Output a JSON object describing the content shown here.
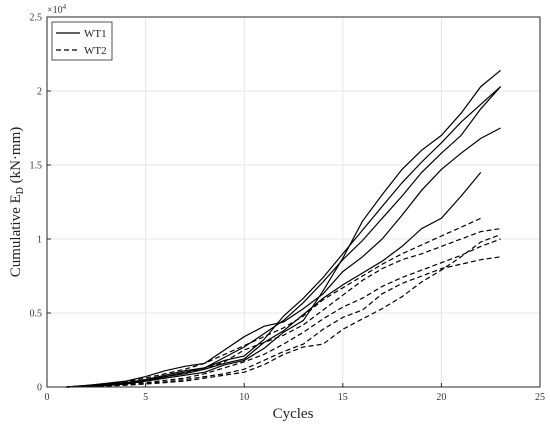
{
  "chart_data": {
    "type": "line",
    "title": "",
    "xlabel": "Cycles",
    "ylabel_main": "Cumulative  E",
    "ylabel_sub": "D",
    "ylabel_units": "(kN·mm)",
    "xlim": [
      0,
      25
    ],
    "ylim": [
      0,
      25000
    ],
    "x_ticks": [
      0,
      5,
      10,
      15,
      20,
      25
    ],
    "y_ticks": [
      0,
      5000,
      10000,
      15000,
      20000,
      25000
    ],
    "y_tick_labels": [
      "0",
      "0.5",
      "1",
      "1.5",
      "2",
      "2.5"
    ],
    "y_exponent_base": "×10",
    "y_exponent_power": "4",
    "grid": true,
    "legend_position": "top-left",
    "legend": [
      {
        "label": "WT1",
        "style": "solid"
      },
      {
        "label": "WT2",
        "style": "dashed"
      }
    ],
    "series": [
      {
        "group": "WT1",
        "style": "solid",
        "x": [
          1,
          2,
          3,
          4,
          5,
          6,
          7,
          8,
          9,
          10,
          11,
          12,
          13,
          14,
          15,
          16,
          17,
          18,
          19,
          20,
          21,
          22,
          23
        ],
        "y": [
          0,
          100,
          200,
          300,
          500,
          800,
          1100,
          1300,
          2000,
          2700,
          3600,
          4500,
          5700,
          7100,
          8600,
          9900,
          11400,
          12900,
          14500,
          15800,
          17000,
          18800,
          20300
        ]
      },
      {
        "group": "WT1",
        "style": "solid",
        "x": [
          1,
          2,
          3,
          4,
          5,
          6,
          7,
          8,
          9,
          10,
          11,
          12,
          13,
          14,
          15,
          16,
          17,
          18,
          19,
          20,
          21,
          22,
          23
        ],
        "y": [
          0,
          50,
          150,
          250,
          450,
          700,
          1000,
          1300,
          1800,
          2100,
          3200,
          4800,
          6000,
          7400,
          9000,
          10600,
          12200,
          13800,
          15200,
          16500,
          17900,
          19100,
          20300
        ]
      },
      {
        "group": "WT1",
        "style": "solid",
        "x": [
          1,
          2,
          3,
          4,
          5,
          6,
          7,
          8,
          9,
          10,
          11,
          12,
          13,
          14,
          15,
          16,
          17,
          18,
          19,
          20,
          21,
          22,
          23
        ],
        "y": [
          0,
          50,
          100,
          200,
          400,
          600,
          800,
          1000,
          1500,
          1800,
          2600,
          3700,
          4500,
          6500,
          8700,
          11200,
          13000,
          14700,
          16000,
          17000,
          18500,
          20300,
          21400
        ]
      },
      {
        "group": "WT1",
        "style": "solid",
        "x": [
          1,
          2,
          3,
          4,
          5,
          6,
          7,
          8,
          9,
          10,
          11,
          12,
          13,
          14,
          15,
          16,
          17,
          18,
          19,
          20,
          21,
          22,
          23
        ],
        "y": [
          0,
          100,
          250,
          400,
          700,
          1100,
          1400,
          1600,
          2500,
          3400,
          4100,
          4400,
          5300,
          6300,
          7800,
          8800,
          10000,
          11600,
          13300,
          14700,
          15800,
          16800,
          17500
        ]
      },
      {
        "group": "WT1",
        "style": "solid",
        "x": [
          1,
          2,
          3,
          4,
          5,
          6,
          7,
          8,
          9,
          10,
          11,
          12,
          13,
          14,
          15,
          16,
          17,
          18,
          19,
          20,
          21,
          22
        ],
        "y": [
          0,
          50,
          150,
          250,
          450,
          700,
          900,
          1200,
          1600,
          1900,
          3000,
          3800,
          4900,
          6000,
          6900,
          7700,
          8500,
          9500,
          10700,
          11400,
          12900,
          14500
        ]
      },
      {
        "group": "WT2",
        "style": "dashed",
        "x": [
          1,
          2,
          3,
          4,
          5,
          6,
          7,
          8,
          9,
          10,
          11,
          12,
          13,
          14,
          15,
          16,
          17,
          18,
          19,
          20,
          21,
          22,
          23
        ],
        "y": [
          0,
          50,
          150,
          250,
          450,
          700,
          1000,
          1200,
          1700,
          2500,
          3000,
          3500,
          4200,
          5200,
          6200,
          7200,
          8000,
          8600,
          9000,
          9500,
          10000,
          10500,
          10700
        ]
      },
      {
        "group": "WT2",
        "style": "dashed",
        "x": [
          1,
          2,
          3,
          4,
          5,
          6,
          7,
          8,
          9,
          10,
          11,
          12,
          13,
          14,
          15,
          16,
          17,
          18,
          19,
          20,
          21,
          22
        ],
        "y": [
          0,
          100,
          200,
          350,
          600,
          900,
          1200,
          1600,
          2200,
          2800,
          3400,
          4000,
          4800,
          5900,
          6700,
          7500,
          8300,
          9000,
          9600,
          10200,
          10800,
          11400
        ]
      },
      {
        "group": "WT2",
        "style": "dashed",
        "x": [
          1,
          2,
          3,
          4,
          5,
          6,
          7,
          8,
          9,
          10,
          11,
          12,
          13,
          14,
          15,
          16,
          17,
          18,
          19,
          20,
          21,
          22,
          23
        ],
        "y": [
          0,
          30,
          100,
          200,
          300,
          450,
          600,
          900,
          1300,
          1700,
          2200,
          2900,
          3700,
          4600,
          5400,
          6000,
          6800,
          7400,
          7900,
          8400,
          8900,
          9500,
          10000
        ]
      },
      {
        "group": "WT2",
        "style": "dashed",
        "x": [
          1,
          2,
          3,
          4,
          5,
          6,
          7,
          8,
          9,
          10,
          11,
          12,
          13,
          14,
          15,
          16,
          17,
          18,
          19,
          20,
          21,
          22,
          23
        ],
        "y": [
          0,
          30,
          80,
          150,
          250,
          350,
          500,
          700,
          900,
          1200,
          1800,
          2400,
          2900,
          3900,
          4700,
          5200,
          6300,
          7000,
          7500,
          8000,
          8300,
          8600,
          8800
        ]
      },
      {
        "group": "WT2",
        "style": "dashed",
        "x": [
          1,
          2,
          3,
          4,
          5,
          6,
          7,
          8,
          9,
          10,
          11,
          12,
          13,
          14,
          15,
          16,
          17,
          18,
          19,
          20,
          21,
          22,
          23
        ],
        "y": [
          0,
          20,
          60,
          120,
          200,
          300,
          400,
          600,
          800,
          1000,
          1500,
          2200,
          2700,
          2900,
          3900,
          4600,
          5300,
          6100,
          7100,
          7900,
          8800,
          9800,
          10300
        ]
      }
    ]
  }
}
